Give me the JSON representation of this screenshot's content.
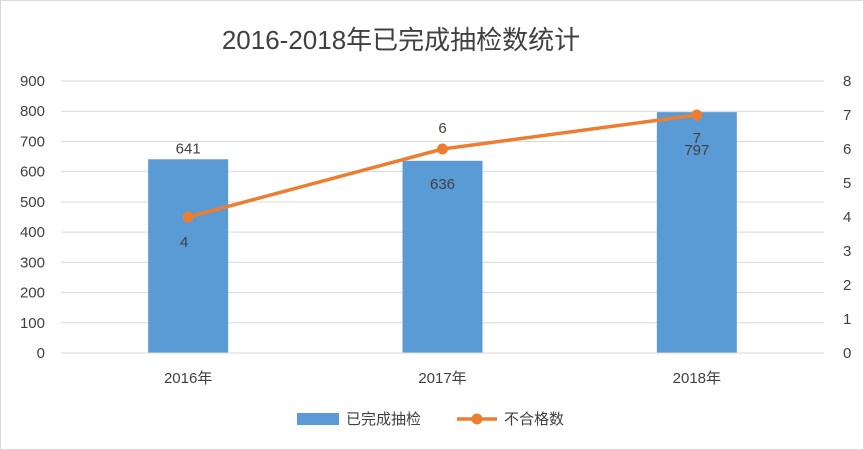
{
  "chart_data": {
    "type": "bar",
    "title": "2016-2018年已完成抽检数统计",
    "categories": [
      "2016年",
      "2017年",
      "2018年"
    ],
    "series": [
      {
        "name": "已完成抽检",
        "type": "bar",
        "axis": "left",
        "values": [
          641,
          636,
          797
        ],
        "color": "#5b9bd5"
      },
      {
        "name": "不合格数",
        "type": "line",
        "axis": "right",
        "values": [
          4,
          6,
          7
        ],
        "color": "#ed7d31"
      }
    ],
    "y_left": {
      "min": 0,
      "max": 900,
      "step": 100,
      "ticks": [
        "0",
        "100",
        "200",
        "300",
        "400",
        "500",
        "600",
        "700",
        "800",
        "900"
      ]
    },
    "y_right": {
      "min": 0,
      "max": 8,
      "step": 1,
      "ticks": [
        "0",
        "1",
        "2",
        "3",
        "4",
        "5",
        "6",
        "7",
        "8"
      ]
    },
    "grid": true,
    "legend": "bottom"
  }
}
